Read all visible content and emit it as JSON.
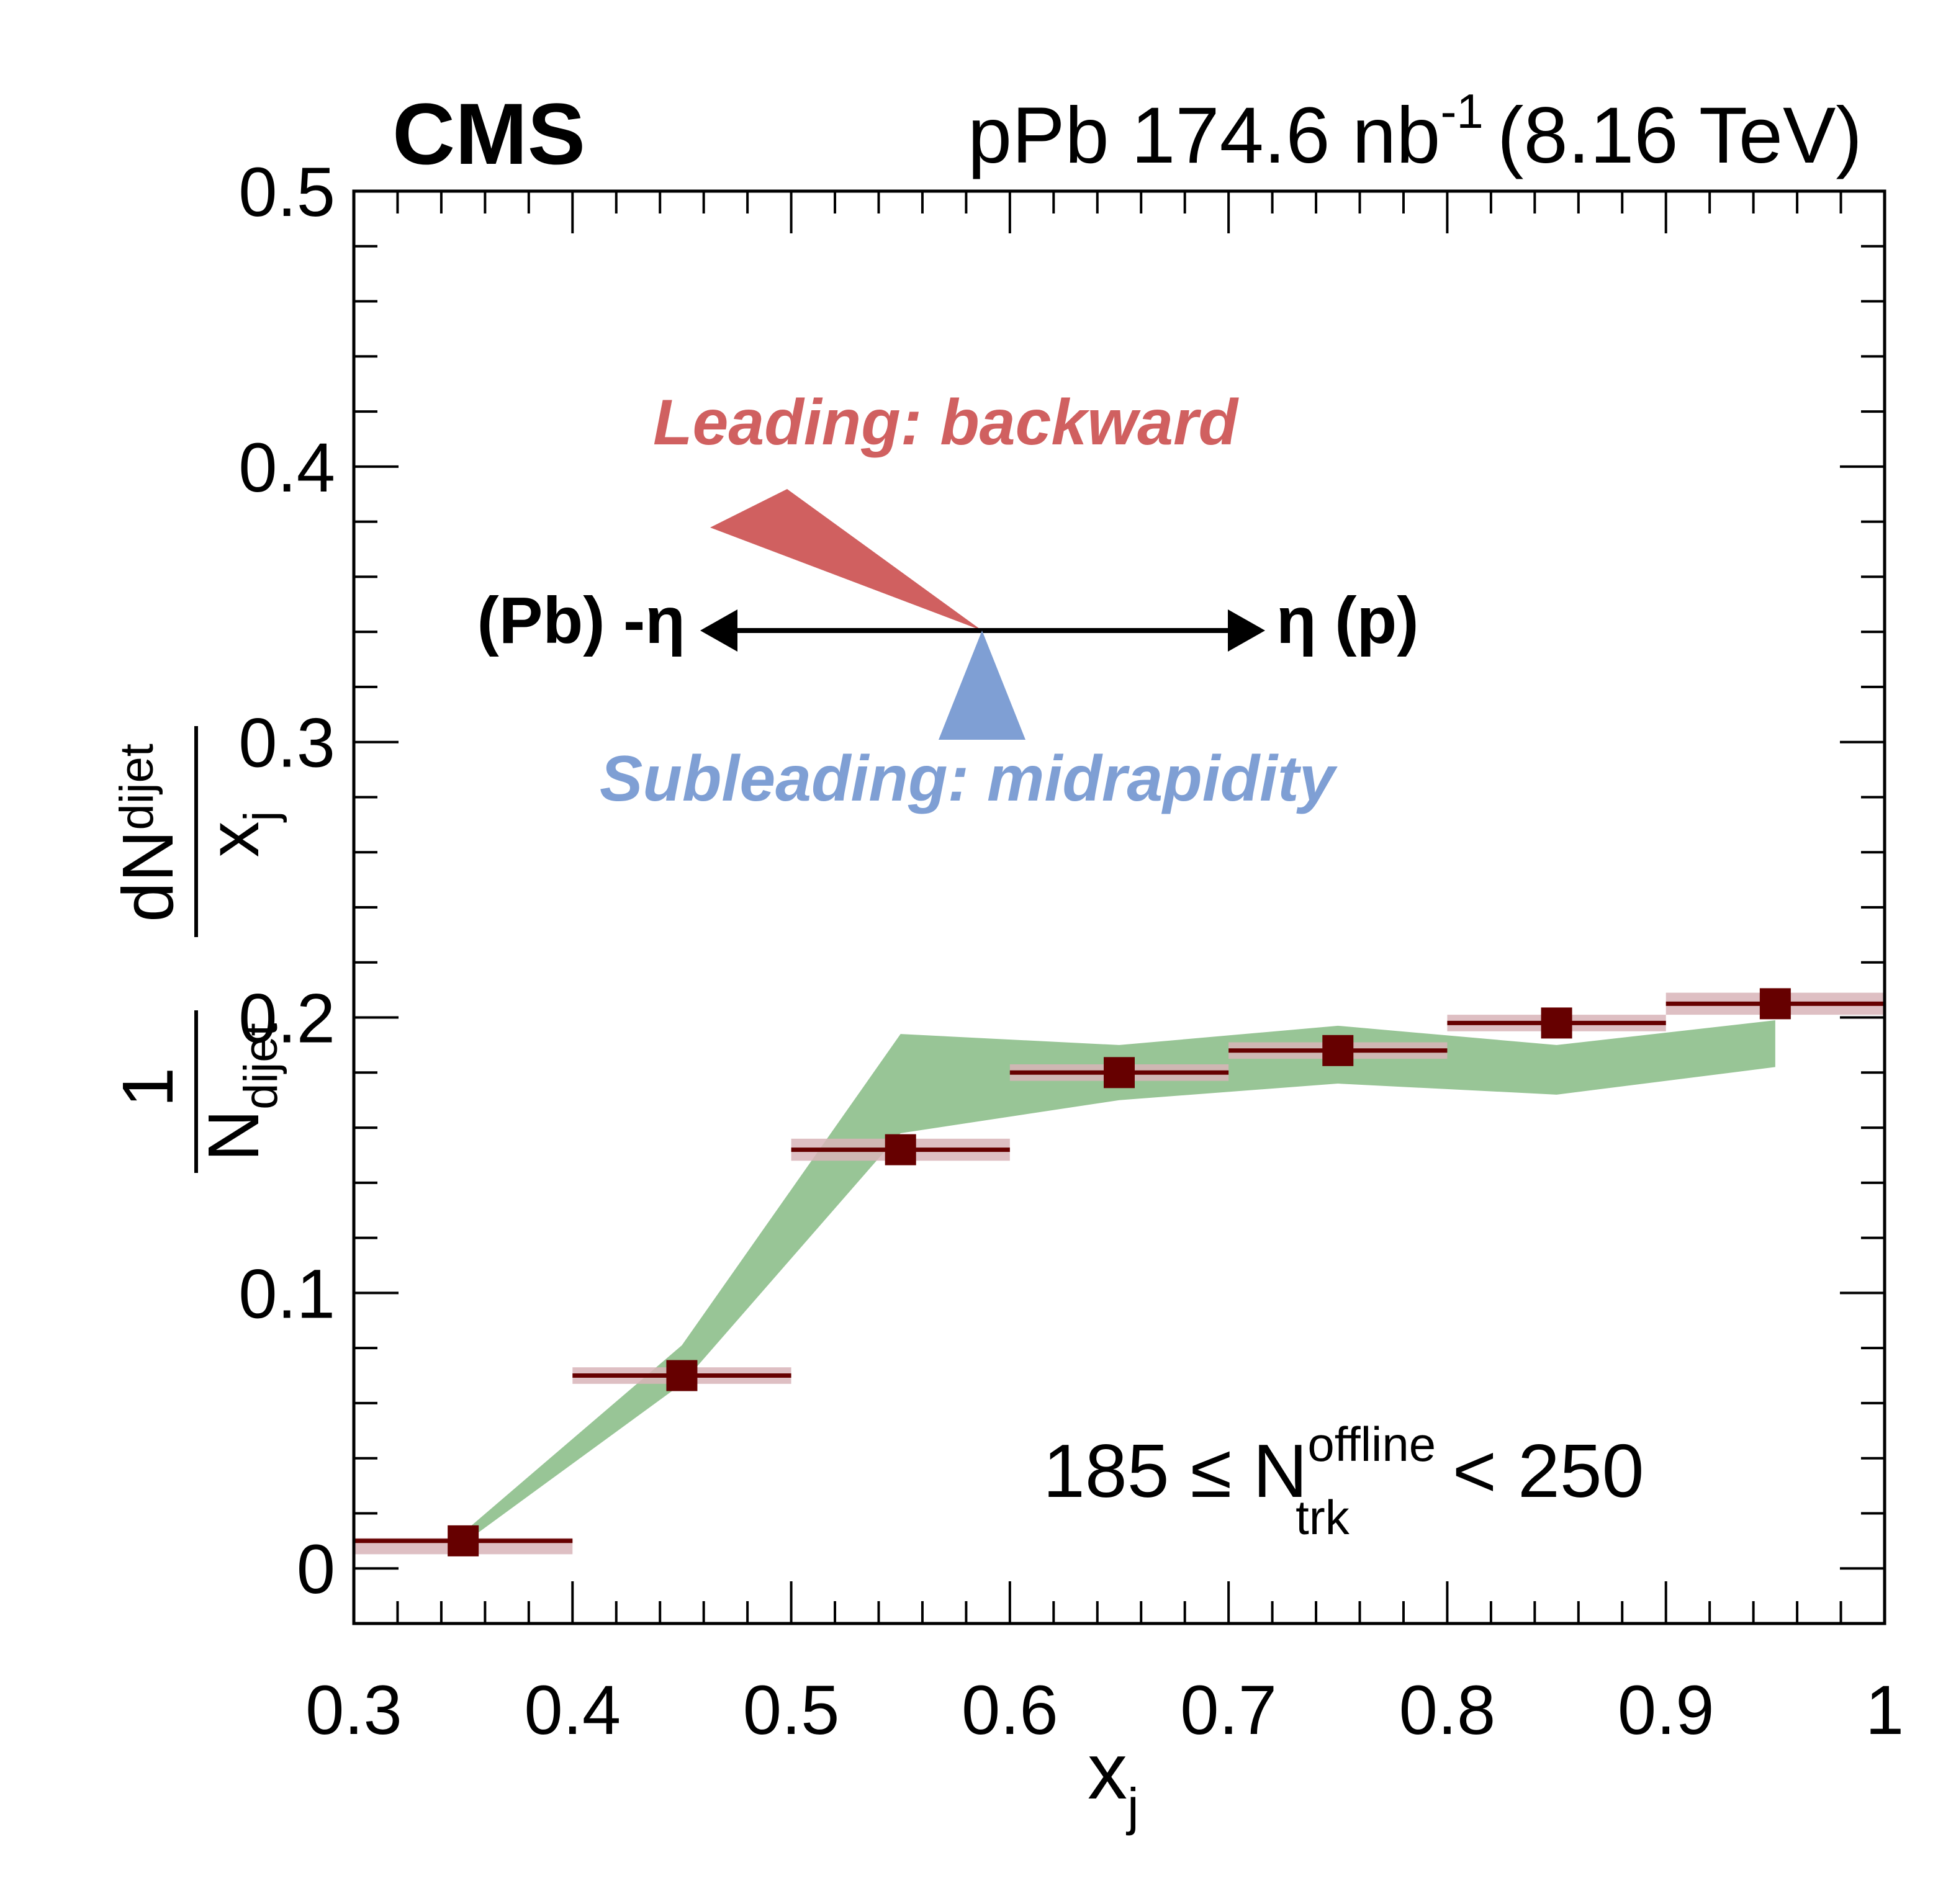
{
  "chart_data": {
    "type": "scatter",
    "experiment": "CMS",
    "lumi_label": {
      "prefix": "pPb 174.6 nb",
      "exponent": "-1",
      "suffix": "(8.16 TeV)"
    },
    "xlabel": {
      "main": "x",
      "sub": "j"
    },
    "ylabel": {
      "num_main": "dN",
      "num_sub": "dijet",
      "den_main": "x",
      "den_sub": "j",
      "pre_num": "1",
      "pre_den_main": "N",
      "pre_den_sub": "dijet"
    },
    "xlim": [
      0.3,
      1.0
    ],
    "ylim": [
      -0.02,
      0.5
    ],
    "x_ticks": [
      "0.3",
      "0.4",
      "0.5",
      "0.6",
      "0.7",
      "0.8",
      "0.9",
      "1"
    ],
    "x_tick_values": [
      0.3,
      0.4,
      0.5,
      0.6,
      0.7,
      0.8,
      0.9,
      1.0
    ],
    "y_ticks": [
      "0",
      "0.1",
      "0.2",
      "0.3",
      "0.4",
      "0.5"
    ],
    "y_tick_values": [
      0,
      0.1,
      0.2,
      0.3,
      0.4,
      0.5
    ],
    "points": {
      "color": "#660000",
      "syst_color": "#d8b4b8",
      "bin_lo": [
        0.3,
        0.4,
        0.5,
        0.6,
        0.7,
        0.8,
        0.9
      ],
      "bin_hi": [
        0.4,
        0.5,
        0.6,
        0.7,
        0.8,
        0.9,
        1.0
      ],
      "x": [
        0.35,
        0.45,
        0.55,
        0.65,
        0.75,
        0.85,
        0.95
      ],
      "y": [
        0.01,
        0.07,
        0.152,
        0.18,
        0.188,
        0.198,
        0.205
      ],
      "syst": [
        0.001,
        0.003,
        0.004,
        0.003,
        0.003,
        0.003,
        0.004
      ]
    },
    "band": {
      "color": "#98c596",
      "x": [
        0.35,
        0.45,
        0.55,
        0.65,
        0.75,
        0.85,
        0.95
      ],
      "lo": [
        0.009,
        0.067,
        0.158,
        0.17,
        0.176,
        0.172,
        0.182
      ],
      "hi": [
        0.013,
        0.081,
        0.194,
        0.19,
        0.197,
        0.19,
        0.199
      ]
    },
    "annotations": {
      "leading": "Leading: backward",
      "leading_color": "#d06060",
      "subleading": "Subleading: midrapidity",
      "subleading_color": "#7f9fd4",
      "left_arrow": "(Pb) -η",
      "right_arrow": "η (p)",
      "mult_lo": "185 ≤ N",
      "mult_sup": "offline",
      "mult_sub": "trk",
      "mult_hi": "< 250"
    }
  }
}
